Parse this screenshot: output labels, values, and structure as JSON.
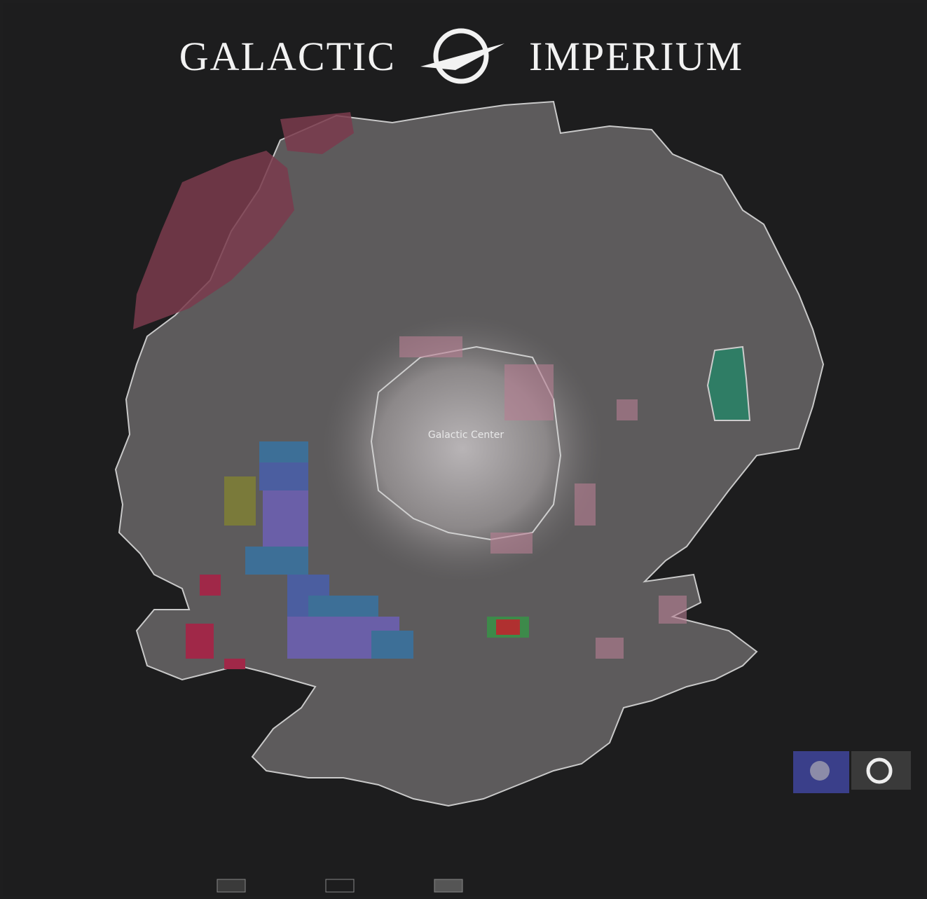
{
  "header": {
    "title_left": "GALACTIC",
    "title_right": "IMPERIUM"
  },
  "map": {
    "labels": [
      "Galactic Center"
    ]
  }
}
